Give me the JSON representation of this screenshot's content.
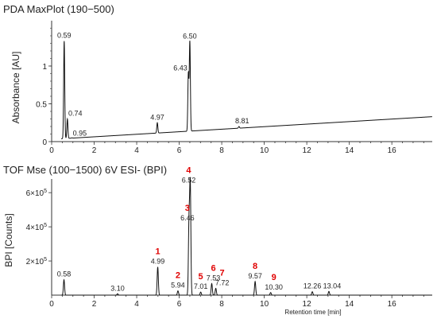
{
  "chart_data": [
    {
      "type": "line",
      "title": "PDA MaxPlot (190−500)",
      "xlabel": "",
      "ylabel": "Absorbance [AU]",
      "xlim": [
        0,
        17.9
      ],
      "ylim": [
        0,
        1.6
      ],
      "x_ticks": [
        0,
        2,
        4,
        6,
        8,
        10,
        12,
        14,
        16
      ],
      "y_ticks": [
        0,
        0.5,
        1
      ],
      "y_tick_labels": [
        "0",
        "0.5",
        "1"
      ],
      "baseline": {
        "start": 0.03,
        "end": 0.33
      },
      "peaks": [
        {
          "x": 0.59,
          "y": 1.33,
          "label": "0.59"
        },
        {
          "x": 0.74,
          "y": 0.3,
          "label": "0.74"
        },
        {
          "x": 0.95,
          "y": 0.05,
          "label": "0.95"
        },
        {
          "x": 4.97,
          "y": 0.25,
          "label": "4.97"
        },
        {
          "x": 6.43,
          "y": 0.9,
          "label": "6.43"
        },
        {
          "x": 6.5,
          "y": 1.32,
          "label": "6.50"
        },
        {
          "x": 8.81,
          "y": 0.2,
          "label": "8.81"
        }
      ]
    },
    {
      "type": "line",
      "title": "TOF Mse (100−1500) 6V ESI- (BPI)",
      "xlabel": "Retention time [min]",
      "ylabel": "BPI [Counts]",
      "xlim": [
        0,
        17.9
      ],
      "ylim": [
        0,
        680000
      ],
      "x_ticks": [
        0,
        2,
        4,
        6,
        8,
        10,
        12,
        14,
        16
      ],
      "y_ticks": [
        200000,
        400000,
        600000
      ],
      "y_tick_labels": [
        "2×10⁵",
        "4×10⁵",
        "6×10⁵"
      ],
      "peaks": [
        {
          "x": 0.58,
          "y": 90000,
          "label": "0.58",
          "num": ""
        },
        {
          "x": 3.1,
          "y": 8000,
          "label": "3.10",
          "num": ""
        },
        {
          "x": 4.99,
          "y": 165000,
          "label": "4.99",
          "num": "1"
        },
        {
          "x": 5.94,
          "y": 25000,
          "label": "5.94",
          "num": "2"
        },
        {
          "x": 6.46,
          "y": 420000,
          "label": "6.46",
          "num": "3"
        },
        {
          "x": 6.52,
          "y": 640000,
          "label": "6.52",
          "num": "4"
        },
        {
          "x": 7.01,
          "y": 18000,
          "label": "7.01",
          "num": "5"
        },
        {
          "x": 7.53,
          "y": 68000,
          "label": "7.53",
          "num": "6"
        },
        {
          "x": 7.72,
          "y": 40000,
          "label": "7.72",
          "num": "7"
        },
        {
          "x": 9.57,
          "y": 80000,
          "label": "9.57",
          "num": "8"
        },
        {
          "x": 10.3,
          "y": 15000,
          "label": "10.30",
          "num": "9"
        },
        {
          "x": 12.26,
          "y": 20000,
          "label": "12.26",
          "num": ""
        },
        {
          "x": 13.04,
          "y": 22000,
          "label": "13.04",
          "num": ""
        }
      ]
    }
  ]
}
